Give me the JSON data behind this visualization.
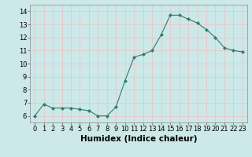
{
  "x": [
    0,
    1,
    2,
    3,
    4,
    5,
    6,
    7,
    8,
    9,
    10,
    11,
    12,
    13,
    14,
    15,
    16,
    17,
    18,
    19,
    20,
    21,
    22,
    23
  ],
  "y": [
    6.0,
    6.9,
    6.6,
    6.6,
    6.6,
    6.5,
    6.4,
    6.0,
    6.0,
    6.7,
    8.7,
    10.5,
    10.7,
    11.0,
    12.2,
    13.7,
    13.7,
    13.4,
    13.1,
    12.6,
    12.0,
    11.2,
    11.0,
    10.9
  ],
  "line_color": "#2e7d6e",
  "marker": "D",
  "marker_size": 2,
  "bg_color": "#cce8e8",
  "grid_color": "#e8c8c8",
  "xlabel": "Humidex (Indice chaleur)",
  "ylabel": "",
  "xlim": [
    -0.5,
    23.5
  ],
  "ylim": [
    5.5,
    14.5
  ],
  "yticks": [
    6,
    7,
    8,
    9,
    10,
    11,
    12,
    13,
    14
  ],
  "xticks": [
    0,
    1,
    2,
    3,
    4,
    5,
    6,
    7,
    8,
    9,
    10,
    11,
    12,
    13,
    14,
    15,
    16,
    17,
    18,
    19,
    20,
    21,
    22,
    23
  ],
  "tick_fontsize": 6,
  "xlabel_fontsize": 7.5
}
